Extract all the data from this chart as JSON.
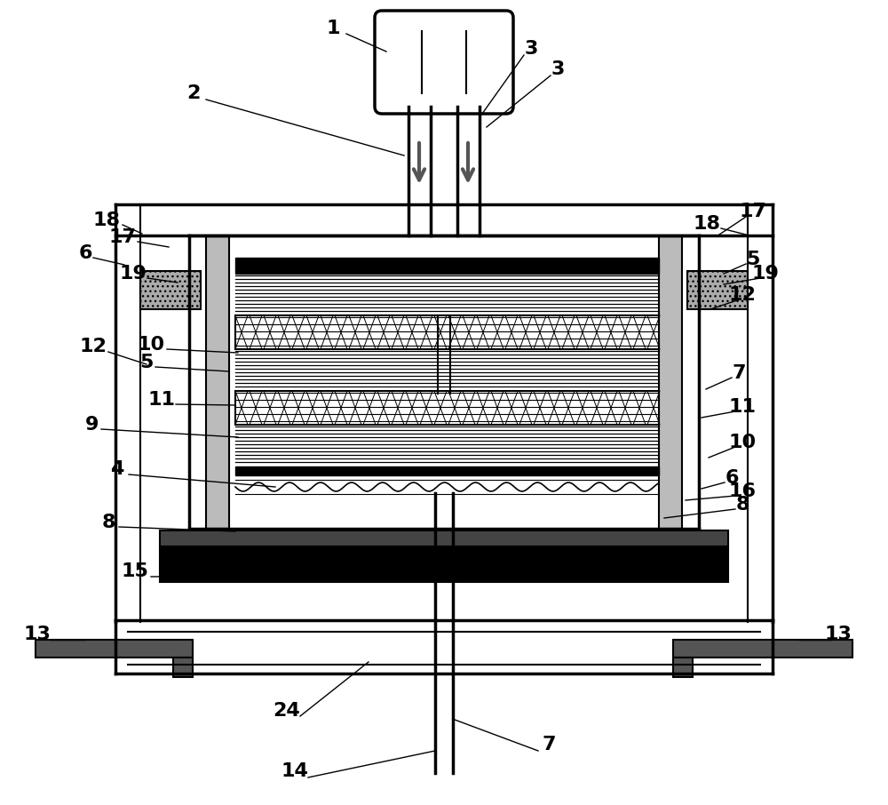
{
  "bg_color": "#ffffff",
  "line_color": "#000000",
  "dark_gray": "#555555",
  "mid_gray": "#888888",
  "light_gray": "#aaaaaa"
}
